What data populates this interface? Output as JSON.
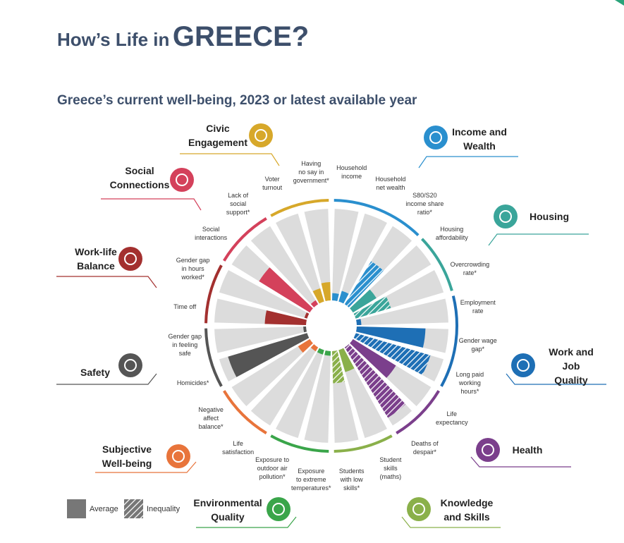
{
  "header": {
    "title_prefix": "How’s Life in",
    "title_country": "GREECE?"
  },
  "chart_data": {
    "type": "radial_bar",
    "title": "Greece’s current well-being, 2023 or latest available year",
    "rlim": [
      0,
      100
    ],
    "background_color": "#dcdcdc",
    "legend": [
      "Average",
      "Inequality"
    ],
    "dimensions": [
      {
        "name": "Income and\nWealth",
        "color": "#2a8fce",
        "indicators": [
          {
            "label": "Household\nincome",
            "value": 8,
            "hatched": false
          },
          {
            "label": "Household\nnet wealth",
            "value": 12,
            "hatched": false
          },
          {
            "label": "S80/S20\nincome share\nratio*",
            "value": 55,
            "hatched": true
          }
        ]
      },
      {
        "name": "Housing",
        "color": "#3aa59a",
        "indicators": [
          {
            "label": "Housing\naffordability",
            "value": 30,
            "hatched": false
          },
          {
            "label": "Overcrowding\nrate*",
            "value": 40,
            "hatched": true
          }
        ]
      },
      {
        "name": "Work and Job\nQuality",
        "color": "#1e6fb5",
        "indicators": [
          {
            "label": "Employment\nrate",
            "value": 5,
            "hatched": false
          },
          {
            "label": "Gender wage\ngap*",
            "value": 75,
            "hatched": false
          },
          {
            "label": "Long paid\nworking\nhours*",
            "value": 85,
            "hatched": true
          }
        ]
      },
      {
        "name": "Health",
        "color": "#7b3f8c",
        "indicators": [
          {
            "label": "Life\nexpectancy",
            "value": 55,
            "hatched": false
          },
          {
            "label": "Deaths of\ndespair*",
            "value": 90,
            "hatched": true
          }
        ]
      },
      {
        "name": "Knowledge\nand Skills",
        "color": "#8ab04a",
        "indicators": [
          {
            "label": "Student\nskills\n(maths)",
            "value": 25,
            "hatched": false
          },
          {
            "label": "Students\nwith low\nskills*",
            "value": 35,
            "hatched": true
          }
        ]
      },
      {
        "name": "Environmental\nQuality",
        "color": "#3aa54a",
        "indicators": [
          {
            "label": "Exposure\nto extreme\ntemperatures*",
            "value": 5,
            "hatched": false
          },
          {
            "label": "Exposure to\noutdoor air\npollution*",
            "value": 5,
            "hatched": false
          }
        ]
      },
      {
        "name": "Subjective\nWell-being",
        "color": "#e8743b",
        "indicators": [
          {
            "label": "Life\nsatisfaction",
            "value": 5,
            "hatched": false
          },
          {
            "label": "Negative\naffect\nbalance*",
            "value": 15,
            "hatched": false
          }
        ]
      },
      {
        "name": "Safety",
        "color": "#555555",
        "indicators": [
          {
            "label": "Homicides*",
            "value": 90,
            "hatched": false
          },
          {
            "label": "Gender gap\nin feeling\nsafe",
            "value": 3,
            "hatched": false
          }
        ]
      },
      {
        "name": "Work-life\nBalance",
        "color": "#a3302f",
        "indicators": [
          {
            "label": "Time off",
            "value": 45,
            "hatched": false
          },
          {
            "label": "Gender gap\nin hours\nworked*",
            "value": 3,
            "hatched": false
          }
        ]
      },
      {
        "name": "Social\nConnections",
        "color": "#d4415b",
        "indicators": [
          {
            "label": "Social\ninteractions",
            "value": 65,
            "hatched": false
          },
          {
            "label": "Lack of\nsocial\nsupport*",
            "value": 5,
            "hatched": false
          }
        ]
      },
      {
        "name": "Civic\nEngagement",
        "color": "#d7a82a",
        "indicators": [
          {
            "label": "Voter\nturnout",
            "value": 15,
            "hatched": false
          },
          {
            "label": "Having\nno say in\ngovernment*",
            "value": 20,
            "hatched": false
          }
        ]
      }
    ]
  }
}
